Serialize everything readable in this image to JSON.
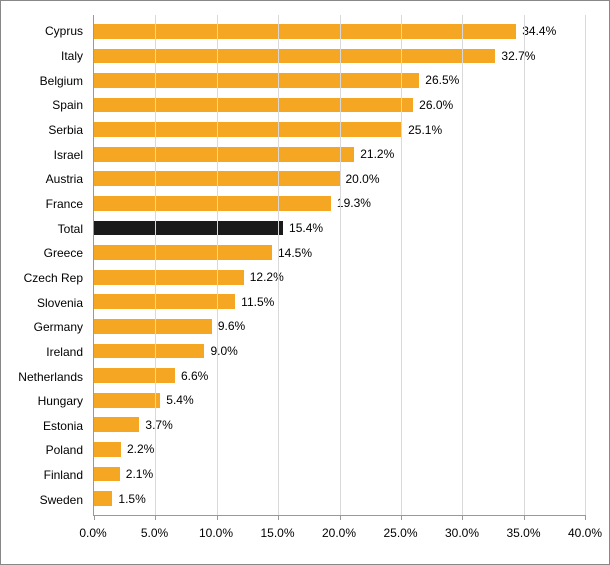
{
  "chart": {
    "type": "bar-horizontal",
    "xlim": [
      0,
      40
    ],
    "xtick_step": 5,
    "xtick_suffix": "%",
    "axis_color": "#999999",
    "grid_color": "#d9d9d9",
    "background_color": "#ffffff",
    "label_fontsize": 12,
    "bar_default_color": "#f5a623",
    "highlight_color": "#1a1a1a",
    "value_label_suffix": "%",
    "value_label_decimals": 1,
    "data": [
      {
        "label": "Cyprus",
        "value": 34.4,
        "color": "#f5a623"
      },
      {
        "label": "Italy",
        "value": 32.7,
        "color": "#f5a623"
      },
      {
        "label": "Belgium",
        "value": 26.5,
        "color": "#f5a623"
      },
      {
        "label": "Spain",
        "value": 26.0,
        "color": "#f5a623"
      },
      {
        "label": "Serbia",
        "value": 25.1,
        "color": "#f5a623"
      },
      {
        "label": "Israel",
        "value": 21.2,
        "color": "#f5a623"
      },
      {
        "label": "Austria",
        "value": 20.0,
        "color": "#f5a623"
      },
      {
        "label": "France",
        "value": 19.3,
        "color": "#f5a623"
      },
      {
        "label": "Total",
        "value": 15.4,
        "color": "#1a1a1a"
      },
      {
        "label": "Greece",
        "value": 14.5,
        "color": "#f5a623"
      },
      {
        "label": "Czech Rep",
        "value": 12.2,
        "color": "#f5a623"
      },
      {
        "label": "Slovenia",
        "value": 11.5,
        "color": "#f5a623"
      },
      {
        "label": "Germany",
        "value": 9.6,
        "color": "#f5a623"
      },
      {
        "label": "Ireland",
        "value": 9.0,
        "color": "#f5a623"
      },
      {
        "label": "Netherlands",
        "value": 6.6,
        "color": "#f5a623"
      },
      {
        "label": "Hungary",
        "value": 5.4,
        "color": "#f5a623"
      },
      {
        "label": "Estonia",
        "value": 3.7,
        "color": "#f5a623"
      },
      {
        "label": "Poland",
        "value": 2.2,
        "color": "#f5a623"
      },
      {
        "label": "Finland",
        "value": 2.1,
        "color": "#f5a623"
      },
      {
        "label": "Sweden",
        "value": 1.5,
        "color": "#f5a623"
      }
    ]
  }
}
